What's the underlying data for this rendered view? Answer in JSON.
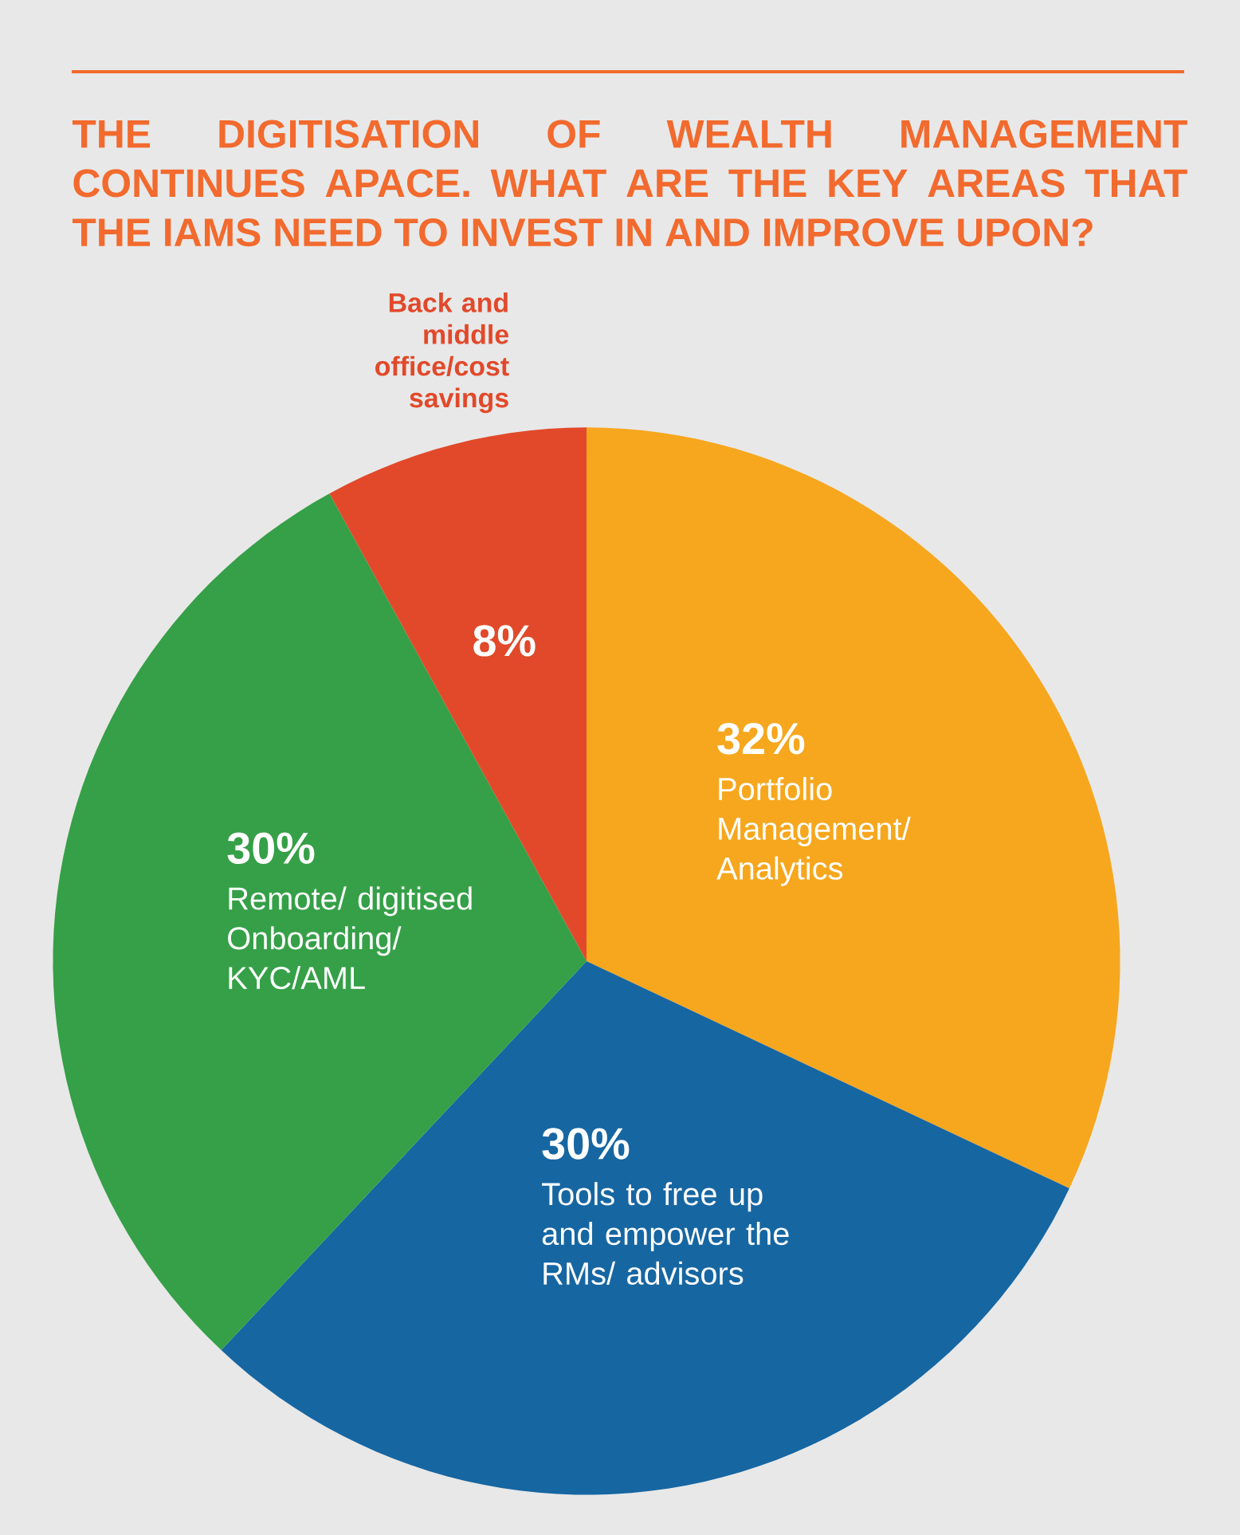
{
  "chart_data": {
    "type": "pie",
    "title": "THE DIGITISATION OF WEALTH MANAGEMENT CONTINUES APACE. WHAT ARE THE KEY AREAS THAT THE IAMS NEED TO INVEST IN AND IMPROVE UPON?",
    "categories": [
      "Portfolio Management/ Analytics",
      "Tools to free up and empower the RMs/ advisors",
      "Remote/ digitised Onboarding/ KYC/AML",
      "Back and middle office/cost savings"
    ],
    "values": [
      32,
      30,
      30,
      8
    ],
    "colors": [
      "#f6a71e",
      "#1666a2",
      "#35a047",
      "#e1492a"
    ],
    "value_labels": [
      "32%",
      "30%",
      "30%",
      "8%"
    ]
  }
}
